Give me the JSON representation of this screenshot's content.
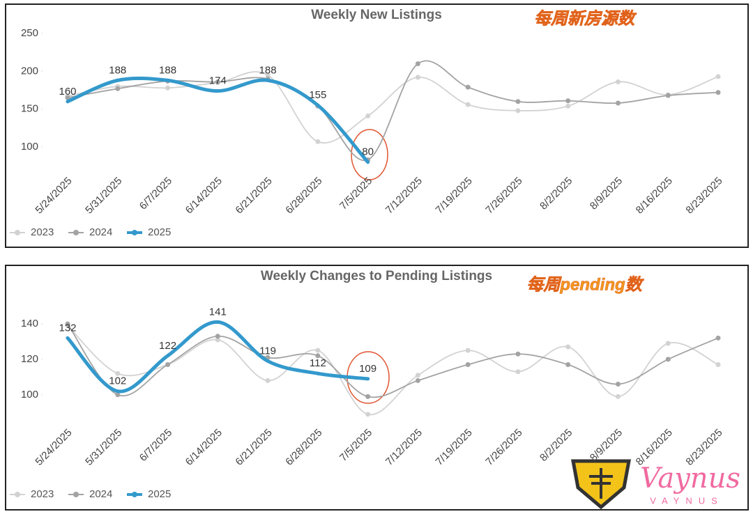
{
  "chart_data": [
    {
      "type": "line",
      "title": "Weekly New Listings",
      "annotation": "每周新房源数",
      "categories": [
        "5/24/2025",
        "5/31/2025",
        "6/7/2025",
        "6/14/2025",
        "6/21/2025",
        "6/28/2025",
        "7/5/2025",
        "7/12/2025",
        "7/19/2025",
        "7/26/2025",
        "8/2/2025",
        "8/9/2025",
        "8/16/2025",
        "8/23/2025"
      ],
      "series": [
        {
          "name": "2023",
          "color": "#d2d2d2",
          "values": [
            167,
            180,
            178,
            185,
            195,
            107,
            141,
            192,
            156,
            148,
            154,
            186,
            169,
            193
          ]
        },
        {
          "name": "2024",
          "color": "#a3a3a3",
          "values": [
            165,
            177,
            187,
            186,
            190,
            154,
            83,
            210,
            179,
            160,
            161,
            158,
            168,
            172
          ]
        },
        {
          "name": "2025",
          "color": "#3399cc",
          "values": [
            160,
            188,
            188,
            174,
            188,
            155,
            80,
            null,
            null,
            null,
            null,
            null,
            null,
            null
          ]
        }
      ],
      "ylim": [
        70,
        250
      ],
      "yticks": [
        100,
        150,
        200,
        250
      ],
      "legend": "bottom-left"
    },
    {
      "type": "line",
      "title": "Weekly Changes to Pending Listings",
      "annotation": "每周pending数",
      "categories": [
        "5/24/2025",
        "5/31/2025",
        "6/7/2025",
        "6/14/2025",
        "6/21/2025",
        "6/28/2025",
        "7/5/2025",
        "7/12/2025",
        "7/19/2025",
        "7/26/2025",
        "8/2/2025",
        "8/9/2025",
        "8/16/2025",
        "8/23/2025"
      ],
      "series": [
        {
          "name": "2023",
          "color": "#d2d2d2",
          "values": [
            139,
            112,
            117,
            131,
            108,
            125,
            89,
            111,
            125,
            113,
            127,
            99,
            129,
            117
          ]
        },
        {
          "name": "2024",
          "color": "#a3a3a3",
          "values": [
            140,
            100,
            117,
            133,
            121,
            122,
            99,
            108,
            117,
            123,
            117,
            106,
            120,
            132
          ]
        },
        {
          "name": "2025",
          "color": "#3399cc",
          "values": [
            132,
            102,
            122,
            141,
            119,
            112,
            109,
            null,
            null,
            null,
            null,
            null,
            null,
            null
          ]
        }
      ],
      "ylim": [
        85,
        150
      ],
      "yticks": [
        100,
        120,
        140
      ],
      "legend": "bottom-left"
    }
  ],
  "watermark": {
    "script": "Vaynus",
    "caps": "VAYNUS"
  }
}
